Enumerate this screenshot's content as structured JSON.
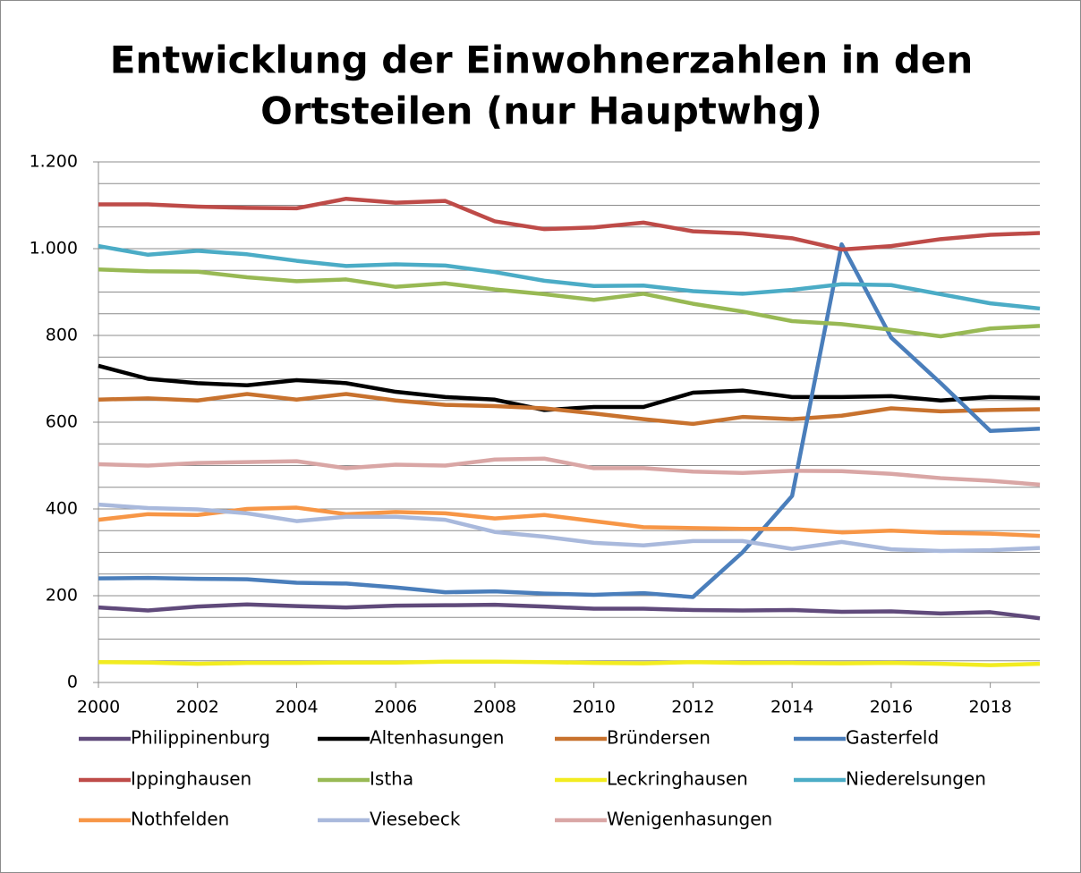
{
  "chart_data": {
    "type": "line",
    "title": [
      "Entwicklung der Einwohnerzahlen in den",
      "Ortsteilen (nur Hauptwhg)"
    ],
    "x": [
      2000,
      2001,
      2002,
      2003,
      2004,
      2005,
      2006,
      2007,
      2008,
      2009,
      2010,
      2011,
      2012,
      2013,
      2014,
      2015,
      2016,
      2017,
      2018,
      2019
    ],
    "xlim": [
      2000,
      2019
    ],
    "xticks": [
      2000,
      2002,
      2004,
      2006,
      2008,
      2010,
      2012,
      2014,
      2016,
      2018
    ],
    "ylim": [
      0,
      1200
    ],
    "yticks": [
      0,
      200,
      400,
      600,
      800,
      {
        "value": 1000,
        "label": "1.000"
      },
      {
        "value": 1200,
        "label": "1.200"
      }
    ],
    "grid_yticks": [
      0,
      50,
      100,
      150,
      200,
      250,
      300,
      350,
      400,
      450,
      500,
      550,
      600,
      650,
      700,
      750,
      800,
      850,
      900,
      950,
      1000,
      1050,
      1100,
      1150,
      1200
    ],
    "grid": true,
    "legend": "bottom",
    "series": [
      {
        "name": "Philippinenburg",
        "color": "#604a7b",
        "values": [
          173,
          166,
          175,
          180,
          176,
          173,
          177,
          178,
          179,
          175,
          170,
          170,
          167,
          166,
          167,
          163,
          164,
          159,
          162,
          148
        ]
      },
      {
        "name": "Altenhasungen",
        "color": "#000000",
        "values": [
          730,
          700,
          690,
          685,
          697,
          690,
          670,
          658,
          652,
          628,
          635,
          635,
          668,
          673,
          658,
          658,
          660,
          650,
          658,
          656
        ]
      },
      {
        "name": "Bründersen",
        "color": "#c8722e",
        "values": [
          652,
          655,
          650,
          665,
          652,
          665,
          650,
          640,
          637,
          632,
          620,
          607,
          596,
          612,
          607,
          615,
          632,
          625,
          628,
          630
        ]
      },
      {
        "name": "Gasterfeld",
        "color": "#4a7ebb",
        "values": [
          240,
          241,
          239,
          238,
          230,
          228,
          219,
          208,
          210,
          205,
          202,
          206,
          197,
          300,
          430,
          1010,
          795,
          690,
          580,
          585
        ]
      },
      {
        "name": "Ippinghausen",
        "color": "#be4b48",
        "values": [
          1102,
          1102,
          1097,
          1094,
          1093,
          1115,
          1106,
          1110,
          1063,
          1045,
          1049,
          1060,
          1040,
          1035,
          1024,
          998,
          1006,
          1022,
          1032,
          1036
        ]
      },
      {
        "name": "Istha",
        "color": "#98b954",
        "values": [
          952,
          948,
          947,
          934,
          925,
          929,
          912,
          920,
          906,
          895,
          882,
          896,
          873,
          855,
          833,
          826,
          813,
          798,
          816,
          822
        ]
      },
      {
        "name": "Leckringhausen",
        "color": "#f2ec20",
        "values": [
          47,
          46,
          43,
          45,
          45,
          46,
          46,
          48,
          48,
          47,
          45,
          44,
          47,
          45,
          45,
          44,
          45,
          43,
          40,
          43
        ]
      },
      {
        "name": "Niederelsungen",
        "color": "#4bacc6",
        "values": [
          1006,
          986,
          995,
          987,
          972,
          960,
          964,
          961,
          946,
          926,
          914,
          915,
          902,
          896,
          905,
          918,
          916,
          895,
          874,
          862
        ]
      },
      {
        "name": "Nothfelden",
        "color": "#f79646",
        "values": [
          375,
          388,
          386,
          400,
          403,
          388,
          393,
          390,
          378,
          386,
          372,
          358,
          356,
          354,
          354,
          346,
          350,
          345,
          343,
          338
        ]
      },
      {
        "name": "Viesebeck",
        "color": "#a9b9dc",
        "values": [
          410,
          402,
          399,
          390,
          372,
          382,
          382,
          375,
          347,
          336,
          322,
          316,
          326,
          326,
          308,
          324,
          307,
          303,
          305,
          310
        ]
      },
      {
        "name": "Wenigenhasungen",
        "color": "#d9a6a5",
        "values": [
          503,
          500,
          506,
          508,
          510,
          494,
          502,
          500,
          514,
          516,
          494,
          494,
          486,
          483,
          488,
          487,
          481,
          471,
          465,
          456
        ]
      }
    ]
  }
}
